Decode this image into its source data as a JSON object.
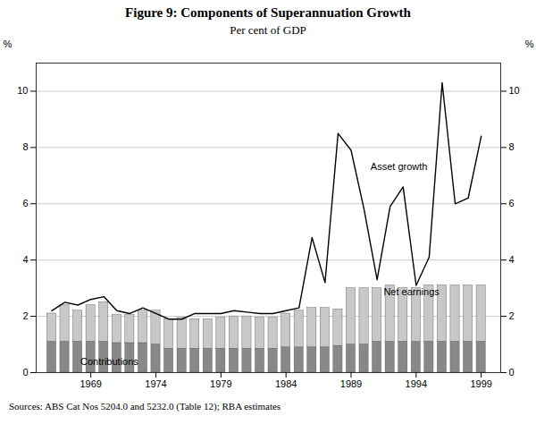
{
  "chart_data": {
    "type": "bar",
    "title": "Figure 9: Components of Superannuation Growth",
    "subtitle": "Per cent of GDP",
    "source": "Sources: ABS Cat Nos 5204.0 and 5232.0 (Table 12); RBA estimates",
    "ylabel": "%",
    "y2label": "%",
    "x": [
      1966,
      1967,
      1968,
      1969,
      1970,
      1971,
      1972,
      1973,
      1974,
      1975,
      1976,
      1977,
      1978,
      1979,
      1980,
      1981,
      1982,
      1983,
      1984,
      1985,
      1986,
      1987,
      1988,
      1989,
      1990,
      1991,
      1992,
      1993,
      1994,
      1995,
      1996,
      1997,
      1998,
      1999
    ],
    "xlim": [
      1964.8,
      2000.5
    ],
    "xticks": [
      1969,
      1974,
      1979,
      1984,
      1989,
      1994,
      1999
    ],
    "ylim": [
      0,
      11
    ],
    "yticks": [
      0,
      2,
      4,
      6,
      8,
      10
    ],
    "y2lim": [
      0,
      11
    ],
    "y2ticks": [
      0,
      2,
      4,
      6,
      8,
      10
    ],
    "grid": true,
    "stacked": true,
    "series": [
      {
        "type": "bar",
        "color": "#888888",
        "values": [
          1.1,
          1.1,
          1.1,
          1.1,
          1.1,
          1.05,
          1.05,
          1.05,
          1.0,
          0.85,
          0.85,
          0.85,
          0.85,
          0.85,
          0.85,
          0.85,
          0.85,
          0.85,
          0.9,
          0.9,
          0.9,
          0.9,
          0.95,
          1.0,
          1.0,
          1.1,
          1.1,
          1.1,
          1.1,
          1.1,
          1.1,
          1.1,
          1.1,
          1.1
        ]
      },
      {
        "type": "bar",
        "color": "#c8c8c8",
        "values": [
          1.0,
          1.3,
          1.1,
          1.3,
          1.4,
          1.0,
          1.0,
          1.15,
          1.2,
          1.05,
          1.1,
          1.05,
          1.05,
          1.1,
          1.15,
          1.15,
          1.1,
          1.1,
          1.2,
          1.3,
          1.4,
          1.4,
          1.3,
          2.0,
          2.0,
          1.9,
          2.0,
          1.9,
          1.9,
          2.0,
          2.0,
          2.0,
          2.0,
          2.0
        ]
      },
      {
        "type": "line",
        "color": "#000000",
        "values": [
          2.2,
          2.5,
          2.4,
          2.6,
          2.7,
          2.2,
          2.1,
          2.3,
          2.1,
          1.9,
          1.9,
          2.1,
          2.1,
          2.1,
          2.2,
          2.15,
          2.1,
          2.1,
          2.2,
          2.3,
          4.8,
          3.2,
          8.5,
          7.9,
          5.8,
          3.3,
          5.9,
          6.6,
          3.1,
          4.1,
          10.3,
          6.0,
          6.2,
          8.4
        ]
      }
    ],
    "annotations": [
      {
        "text": "Asset growth",
        "x": 1990.5,
        "y": 7.2
      },
      {
        "text": "Net earnings",
        "x": 1991.5,
        "y": 2.75
      },
      {
        "text": "Contributions",
        "x": 1968.2,
        "y": 0.28
      }
    ]
  }
}
